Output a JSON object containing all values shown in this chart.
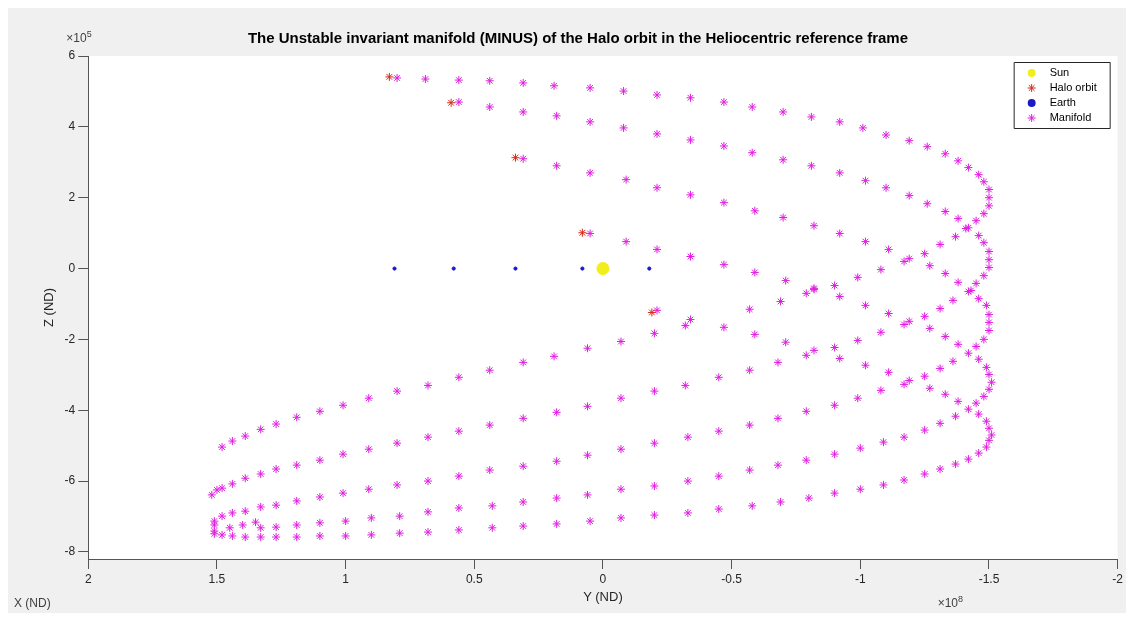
{
  "chart_data": {
    "type": "scatter",
    "title": "The Unstable invariant manifold (MINUS) of the Halo orbit in the Heliocentric reference frame",
    "xlabel": "Y (ND)",
    "ylabel": "Z (ND)",
    "annotations": [
      "×10$^{5}$",
      "×10$^{8}$",
      "X (ND)"
    ],
    "xlim": [
      2,
      -2
    ],
    "xticks": [
      2,
      1.5,
      1,
      0.5,
      0,
      -0.5,
      -1,
      -1.5,
      -2
    ],
    "ylim": [
      -8.2,
      6
    ],
    "yticks": [
      -8,
      -6,
      -4,
      -2,
      0,
      2,
      4,
      6
    ],
    "grid": false,
    "legend": "top right",
    "series": [
      {
        "name": "Sun",
        "color": "#f2ee1c",
        "marker": "circle",
        "x": [
          0
        ],
        "values": [
          0
        ]
      },
      {
        "name": "Halo orbit",
        "color": "#d62b1a",
        "marker": "cross",
        "x": [
          0.83,
          0.59,
          0.34,
          0.08,
          -0.19
        ],
        "values": [
          5.41,
          4.68,
          3.13,
          1.01,
          -1.24
        ]
      },
      {
        "name": "Earth",
        "color": "#1a1ac8",
        "marker": "circle",
        "x": [
          0.81,
          0.58,
          0.34,
          0.08,
          -0.18
        ],
        "values": [
          0,
          0,
          0,
          0,
          0
        ]
      },
      {
        "name": "Manifold",
        "color": "#e01ee0",
        "marker": "cross",
        "x": [
          0.8,
          0.69,
          0.56,
          0.44,
          0.31,
          0.19,
          0.05,
          -0.08,
          -0.21,
          -0.34,
          -0.47,
          -0.58,
          -0.7,
          -0.81,
          -0.92,
          -1.01,
          -1.1,
          -1.19,
          -1.26,
          -1.33,
          -1.38,
          -1.42,
          -1.46,
          -1.48,
          -1.5,
          -1.5,
          -1.5,
          -1.48,
          -1.45,
          -1.42,
          -1.37,
          -1.31,
          -1.25,
          -1.19,
          -1.17,
          -1.08,
          -0.99,
          -0.9,
          -0.82,
          -0.79,
          -0.69,
          -0.57,
          -0.47,
          -0.34,
          -0.32,
          -0.2,
          -0.07,
          0.06,
          0.19,
          0.31,
          0.44,
          0.56,
          0.68,
          0.8,
          0.91,
          1.01,
          1.1,
          1.19,
          1.27,
          1.33,
          1.39,
          1.44,
          1.48,
          0.56,
          0.44,
          0.31,
          0.18,
          0.05,
          -0.08,
          -0.21,
          -0.34,
          -0.47,
          -0.58,
          -0.7,
          -0.81,
          -0.92,
          -1.02,
          -1.1,
          -1.19,
          -1.26,
          -1.33,
          -1.38,
          -1.41,
          -1.46,
          -1.48,
          -1.5,
          -1.5,
          -1.5,
          -1.48,
          -1.45,
          -1.43,
          -1.46,
          -1.49,
          0.31,
          0.18,
          0.05,
          -0.09,
          -0.21,
          -0.34,
          -0.47,
          -0.59,
          -0.7,
          -0.82,
          -0.92,
          -1.02,
          -1.11,
          -1.27,
          -1.33,
          -1.38,
          -1.42,
          0.05,
          -0.09,
          -0.21,
          -0.34,
          -0.47,
          -0.59,
          -0.71,
          -0.82,
          -0.92,
          -1.02,
          -1.11,
          -1.36,
          -1.31,
          -0.21,
          -1.17,
          -1.19,
          -1.25,
          -1.5,
          -1.5,
          -1.5,
          -1.48,
          -1.45,
          -1.42,
          -1.38,
          -1.33,
          -1.27,
          -1.08,
          -0.99,
          -0.9,
          -0.92,
          -0.82,
          -0.79,
          -0.71,
          -0.59,
          -0.68,
          -0.57,
          -1.02,
          -1.11,
          -1.17,
          -1.19,
          -1.25,
          -1.31,
          -1.36,
          -1.46,
          -1.49,
          -1.5,
          -1.51,
          -1.5,
          -1.48,
          -1.45,
          -1.42,
          -1.38,
          -1.33,
          -1.27,
          -1.08,
          -0.99,
          -0.9,
          -0.79,
          -0.68,
          -0.57,
          -1.46,
          -1.49,
          -1.5,
          -1.51,
          -1.5,
          -1.49,
          -1.46,
          -1.42,
          -1.37,
          -1.31,
          -1.25,
          -1.17,
          -1.09,
          -1.0,
          -0.9,
          -0.8,
          -0.69,
          -0.58,
          -1.37,
          -1.31,
          -1.25,
          -1.17,
          -1.09,
          -1.0,
          -0.9,
          -0.79,
          -0.68,
          -0.57,
          -0.45,
          -0.32,
          -0.2,
          -0.07,
          0.06,
          0.18,
          0.31,
          0.44,
          0.56,
          0.68,
          0.8,
          0.91,
          1.01,
          1.1,
          1.19,
          1.27,
          1.33,
          1.39,
          1.44,
          1.48,
          1.5,
          1.52,
          -0.45,
          -0.33,
          -0.2,
          -0.07,
          0.06,
          0.18,
          0.31,
          0.44,
          0.56,
          0.68,
          0.8,
          0.91,
          1.01,
          1.1,
          1.19,
          1.27,
          1.33,
          1.39,
          1.44,
          1.48,
          1.51,
          -0.45,
          -0.33,
          -0.2,
          -0.07,
          0.06,
          0.18,
          0.31,
          0.43,
          0.56,
          0.68,
          0.79,
          0.9,
          1.0,
          1.1,
          1.19,
          1.27,
          1.33,
          1.35,
          1.4,
          1.45,
          1.51,
          -0.45,
          -0.33,
          -0.2,
          -0.07,
          0.05,
          0.18,
          0.31,
          0.43,
          0.56,
          0.68,
          0.79,
          0.9,
          1.0,
          1.1,
          1.19,
          1.27,
          1.33,
          1.39,
          1.44,
          1.48,
          1.51,
          1.51
        ],
        "values": [
          5.38,
          5.35,
          5.32,
          5.3,
          5.24,
          5.16,
          5.1,
          5.01,
          4.9,
          4.82,
          4.7,
          4.56,
          4.42,
          4.28,
          4.14,
          3.97,
          3.77,
          3.61,
          3.44,
          3.24,
          3.04,
          2.85,
          2.65,
          2.45,
          2.23,
          2.0,
          1.77,
          1.55,
          1.35,
          1.15,
          0.9,
          0.68,
          0.42,
          0.28,
          0.2,
          -0.03,
          -0.25,
          -0.48,
          -0.56,
          -0.7,
          -0.93,
          -1.15,
          -1.66,
          -1.44,
          -1.61,
          -1.83,
          -2.06,
          -2.25,
          -2.48,
          -2.65,
          -2.87,
          -3.07,
          -3.3,
          -3.46,
          -3.66,
          -3.86,
          -4.03,
          -4.2,
          -4.39,
          -4.54,
          -4.73,
          -4.87,
          -5.04,
          4.7,
          4.56,
          4.42,
          4.31,
          4.14,
          3.97,
          3.8,
          3.63,
          3.46,
          3.27,
          3.07,
          2.9,
          2.7,
          2.48,
          2.28,
          2.06,
          1.83,
          1.61,
          1.41,
          1.13,
          0.93,
          0.73,
          0.48,
          0.25,
          0.03,
          -0.2,
          -0.42,
          -0.62,
          -0.85,
          -1.04,
          3.1,
          2.9,
          2.7,
          2.51,
          2.28,
          2.08,
          1.86,
          1.63,
          1.44,
          1.21,
          0.99,
          0.76,
          0.54,
          0.08,
          -0.14,
          -0.39,
          -0.65,
          0.99,
          0.76,
          0.54,
          0.34,
          0.11,
          -0.11,
          -0.34,
          -0.59,
          -0.79,
          -1.04,
          -1.27,
          -0.9,
          -1.13,
          -1.18,
          -1.58,
          -1.49,
          -1.35,
          -1.3,
          -1.52,
          -1.75,
          -2.0,
          -2.2,
          -2.39,
          -2.14,
          -1.92,
          -1.69,
          -1.8,
          -2.03,
          -2.23,
          -2.54,
          -2.31,
          -2.45,
          -2.08,
          -1.86,
          -2.65,
          -2.87,
          -2.73,
          -2.93,
          -3.27,
          -3.16,
          -3.04,
          -2.82,
          -2.62,
          -2.56,
          -2.79,
          -2.99,
          -3.21,
          -3.41,
          -3.61,
          -3.8,
          -3.97,
          -3.75,
          -3.55,
          -3.38,
          -3.44,
          -3.66,
          -3.86,
          -4.03,
          -4.23,
          -4.42,
          -4.11,
          -4.31,
          -4.51,
          -4.7,
          -4.85,
          -5.04,
          -5.21,
          -5.38,
          -5.52,
          -5.66,
          -5.8,
          -5.97,
          -6.11,
          -6.23,
          -6.34,
          -6.48,
          -6.59,
          -6.7,
          -4.17,
          -4.37,
          -4.56,
          -4.76,
          -4.9,
          -5.07,
          -5.24,
          -5.41,
          -5.55,
          -5.69,
          -3.07,
          -3.3,
          -3.46,
          -3.66,
          -3.89,
          -4.06,
          -4.23,
          -4.42,
          -4.59,
          -4.76,
          -4.93,
          -5.1,
          -5.24,
          -5.41,
          -5.55,
          -5.66,
          -5.8,
          -5.92,
          -6.08,
          -6.2,
          -6.25,
          -6.39,
          -4.59,
          -4.76,
          -4.93,
          -5.1,
          -5.27,
          -5.44,
          -5.58,
          -5.69,
          -5.86,
          -6.0,
          -6.11,
          -6.23,
          -6.34,
          -6.45,
          -6.56,
          -6.68,
          -6.73,
          -6.85,
          -6.9,
          -6.99,
          -7.13,
          -5.86,
          -6.0,
          -6.14,
          -6.23,
          -6.39,
          -6.48,
          -6.59,
          -6.7,
          -6.76,
          -6.87,
          -6.99,
          -7.04,
          -7.13,
          -7.18,
          -7.24,
          -7.3,
          -7.32,
          -7.16,
          -7.24,
          -7.32,
          -7.24,
          -6.79,
          -6.9,
          -6.96,
          -7.04,
          -7.13,
          -7.21,
          -7.27,
          -7.32,
          -7.38,
          -7.44,
          -7.47,
          -7.52,
          -7.55,
          -7.55,
          -7.58,
          -7.58,
          -7.58,
          -7.58,
          -7.55,
          -7.52,
          -7.49,
          -7.41
        ]
      }
    ]
  }
}
